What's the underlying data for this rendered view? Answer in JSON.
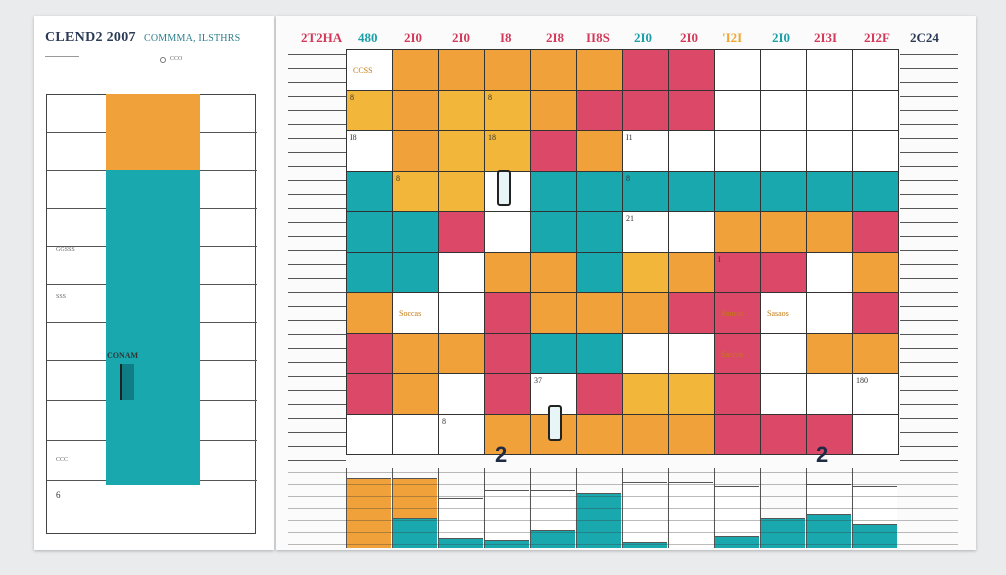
{
  "left_panel": {
    "title": "CLEND2 2007",
    "subtitle": "COMMMA, ILSTHRS",
    "small_label": "CCO",
    "tiny_labels": [
      "GGSSS",
      "SSS",
      "CCC"
    ],
    "block_label": "CONAM",
    "footer_number": "6"
  },
  "header": {
    "years": [
      "2T2HA",
      "480",
      "2I0",
      "2I0",
      "I8",
      "2I8",
      "II8S",
      "2I0",
      "2I0",
      "'I2I",
      "2I0",
      "2I3I",
      "2I2F",
      "2C24"
    ],
    "colors": [
      "#d33a5a",
      "#1aa0a8",
      "#d33a5a",
      "#d33a5a",
      "#d33a5a",
      "#d33a5a",
      "#d33a5a",
      "#1aa0a8",
      "#d33a5a",
      "#f1a630",
      "#1aa0a8",
      "#d33a5a",
      "#d33a5a",
      "#2b3a55"
    ]
  },
  "calendar": {
    "colors": {
      "o": "#f0a13a",
      "y": "#f2b63b",
      "r": "#dc4868",
      "t": "#19a8ae",
      "w": "#ffffff"
    },
    "rows": [
      [
        "w",
        "o",
        "o",
        "o",
        "o",
        "o",
        "r",
        "r",
        "w",
        "w",
        "w",
        "w"
      ],
      [
        "y",
        "o",
        "y",
        "y",
        "o",
        "r",
        "r",
        "r",
        "w",
        "w",
        "w",
        "w"
      ],
      [
        "w",
        "o",
        "y",
        "y",
        "r",
        "o",
        "w",
        "w",
        "w",
        "w",
        "w",
        "w"
      ],
      [
        "t",
        "y",
        "y",
        "w",
        "t",
        "t",
        "t",
        "t",
        "t",
        "t",
        "t",
        "t"
      ],
      [
        "t",
        "t",
        "r",
        "w",
        "t",
        "t",
        "w",
        "w",
        "o",
        "o",
        "o",
        "r"
      ],
      [
        "t",
        "t",
        "w",
        "o",
        "o",
        "t",
        "y",
        "o",
        "r",
        "r",
        "w",
        "o"
      ],
      [
        "o",
        "w",
        "w",
        "r",
        "o",
        "o",
        "o",
        "r",
        "r",
        "w",
        "w",
        "r"
      ],
      [
        "r",
        "o",
        "o",
        "r",
        "t",
        "t",
        "w",
        "w",
        "r",
        "w",
        "o",
        "o"
      ],
      [
        "r",
        "o",
        "w",
        "r",
        "w",
        "r",
        "y",
        "y",
        "r",
        "w",
        "w",
        "w"
      ],
      [
        "w",
        "w",
        "w",
        "o",
        "o",
        "o",
        "o",
        "o",
        "r",
        "r",
        "r",
        "w"
      ]
    ],
    "cell_text": [
      {
        "r": 0,
        "c": 0,
        "text": "CCSS"
      },
      {
        "r": 1,
        "c": 0,
        "text": "8"
      },
      {
        "r": 1,
        "c": 3,
        "text": "8"
      },
      {
        "r": 2,
        "c": 0,
        "text": "I8"
      },
      {
        "r": 2,
        "c": 3,
        "text": "18"
      },
      {
        "r": 2,
        "c": 6,
        "text": "I1"
      },
      {
        "r": 3,
        "c": 1,
        "text": "8"
      },
      {
        "r": 3,
        "c": 6,
        "text": "8"
      },
      {
        "r": 4,
        "c": 6,
        "text": "21"
      },
      {
        "r": 5,
        "c": 8,
        "text": "I"
      },
      {
        "r": 6,
        "c": 1,
        "text": "Soccas"
      },
      {
        "r": 6,
        "c": 8,
        "text": "Soncas"
      },
      {
        "r": 6,
        "c": 9,
        "text": "Sasaos"
      },
      {
        "r": 7,
        "c": 8,
        "text": "Saccos"
      },
      {
        "r": 8,
        "c": 4,
        "text": "37"
      },
      {
        "r": 8,
        "c": 11,
        "text": "180"
      },
      {
        "r": 9,
        "c": 2,
        "text": "8"
      }
    ]
  },
  "markers": [
    "2",
    "2"
  ]
}
